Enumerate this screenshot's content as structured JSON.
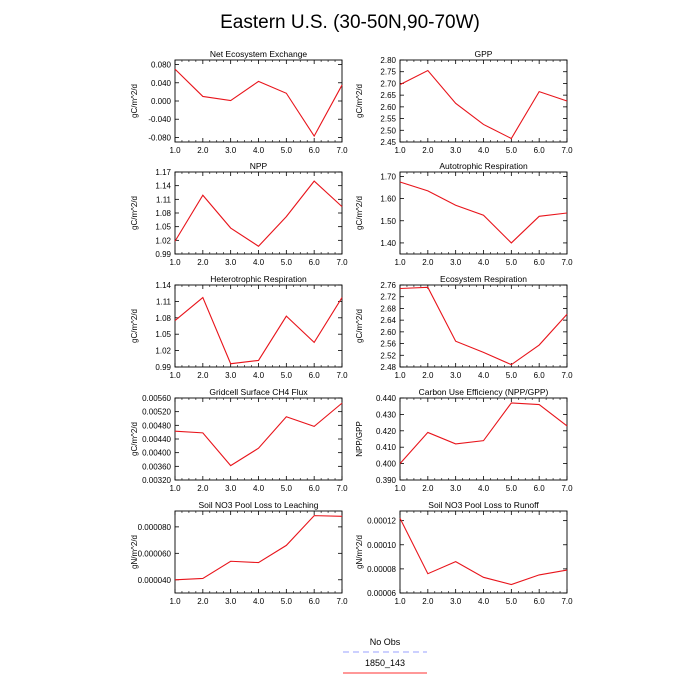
{
  "title": "Eastern U.S. (30-50N,90-70W)",
  "legend": [
    {
      "label": "No Obs",
      "color": "#9aa0ff",
      "dash": true
    },
    {
      "label": "1850_143",
      "color": "#ff3030",
      "dash": false
    }
  ],
  "line_color": "#e8141b",
  "chart_data": [
    {
      "type": "line",
      "title": "Net Ecosystem Exchange",
      "ylabel": "gC/m^2/d",
      "x": [
        1,
        2,
        3,
        4,
        5,
        6,
        7
      ],
      "values": [
        0.07,
        0.01,
        0.001,
        0.043,
        0.017,
        -0.077,
        0.035
      ],
      "xlim": [
        1,
        7
      ],
      "ylim": [
        -0.09,
        0.09
      ],
      "yticks": [
        "-0.080",
        "-0.040",
        "0.000",
        "0.040",
        "0.080"
      ],
      "ytick_values": [
        -0.08,
        -0.04,
        0,
        0.04,
        0.08
      ],
      "xticks": [
        "1.0",
        "2.0",
        "3.0",
        "4.0",
        "5.0",
        "6.0",
        "7.0"
      ]
    },
    {
      "type": "line",
      "title": "GPP",
      "ylabel": "gC/m^2/d",
      "x": [
        1,
        2,
        3,
        4,
        5,
        6,
        7
      ],
      "values": [
        2.695,
        2.755,
        2.615,
        2.525,
        2.465,
        2.665,
        2.625
      ],
      "xlim": [
        1,
        7
      ],
      "ylim": [
        2.45,
        2.8
      ],
      "yticks": [
        "2.45",
        "2.50",
        "2.55",
        "2.60",
        "2.65",
        "2.70",
        "2.75",
        "2.80"
      ],
      "ytick_values": [
        2.45,
        2.5,
        2.55,
        2.6,
        2.65,
        2.7,
        2.75,
        2.8
      ],
      "xticks": [
        "1.0",
        "2.0",
        "3.0",
        "4.0",
        "5.0",
        "6.0",
        "7.0"
      ]
    },
    {
      "type": "line",
      "title": "NPP",
      "ylabel": "gC/m^2/d",
      "x": [
        1,
        2,
        3,
        4,
        5,
        6,
        7
      ],
      "values": [
        1.018,
        1.119,
        1.047,
        1.007,
        1.072,
        1.15,
        1.094
      ],
      "xlim": [
        1,
        7
      ],
      "ylim": [
        0.99,
        1.17
      ],
      "yticks": [
        "0.99",
        "1.02",
        "1.05",
        "1.08",
        "1.11",
        "1.14",
        "1.17"
      ],
      "ytick_values": [
        0.99,
        1.02,
        1.05,
        1.08,
        1.11,
        1.14,
        1.17
      ],
      "xticks": [
        "1.0",
        "2.0",
        "3.0",
        "4.0",
        "5.0",
        "6.0",
        "7.0"
      ]
    },
    {
      "type": "line",
      "title": "Autotrophic Respiration",
      "ylabel": "gC/m^2/d",
      "x": [
        1,
        2,
        3,
        4,
        5,
        6,
        7
      ],
      "values": [
        1.675,
        1.635,
        1.57,
        1.525,
        1.4,
        1.52,
        1.535
      ],
      "xlim": [
        1,
        7
      ],
      "ylim": [
        1.35,
        1.72
      ],
      "yticks": [
        "1.40",
        "1.50",
        "1.60",
        "1.70"
      ],
      "ytick_values": [
        1.4,
        1.5,
        1.6,
        1.7
      ],
      "xticks": [
        "1.0",
        "2.0",
        "3.0",
        "4.0",
        "5.0",
        "6.0",
        "7.0"
      ]
    },
    {
      "type": "line",
      "title": "Heterotrophic Respiration",
      "ylabel": "gC/m^2/d",
      "x": [
        1,
        2,
        3,
        4,
        5,
        6,
        7
      ],
      "values": [
        1.075,
        1.117,
        0.996,
        1.002,
        1.083,
        1.035,
        1.117
      ],
      "xlim": [
        1,
        7
      ],
      "ylim": [
        0.99,
        1.14
      ],
      "yticks": [
        "0.99",
        "1.02",
        "1.05",
        "1.08",
        "1.11",
        "1.14"
      ],
      "ytick_values": [
        0.99,
        1.02,
        1.05,
        1.08,
        1.11,
        1.14
      ],
      "xticks": [
        "1.0",
        "2.0",
        "3.0",
        "4.0",
        "5.0",
        "6.0",
        "7.0"
      ]
    },
    {
      "type": "line",
      "title": "Ecosystem Respiration",
      "ylabel": "gC/m^2/d",
      "x": [
        1,
        2,
        3,
        4,
        5,
        6,
        7
      ],
      "values": [
        2.748,
        2.752,
        2.568,
        2.53,
        2.488,
        2.555,
        2.66
      ],
      "xlim": [
        1,
        7
      ],
      "ylim": [
        2.48,
        2.76
      ],
      "yticks": [
        "2.48",
        "2.52",
        "2.56",
        "2.60",
        "2.64",
        "2.68",
        "2.72",
        "2.76"
      ],
      "ytick_values": [
        2.48,
        2.52,
        2.56,
        2.6,
        2.64,
        2.68,
        2.72,
        2.76
      ],
      "xticks": [
        "1.0",
        "2.0",
        "3.0",
        "4.0",
        "5.0",
        "6.0",
        "7.0"
      ]
    },
    {
      "type": "line",
      "title": "Gridcell Surface CH4 Flux",
      "ylabel": "gC/m^2/d",
      "x": [
        1,
        2,
        3,
        4,
        5,
        6,
        7
      ],
      "values": [
        0.00463,
        0.00458,
        0.00362,
        0.00413,
        0.00505,
        0.00477,
        0.00545
      ],
      "xlim": [
        1,
        7
      ],
      "ylim": [
        0.0032,
        0.0056
      ],
      "yticks": [
        "0.00320",
        "0.00360",
        "0.00400",
        "0.00440",
        "0.00480",
        "0.00520",
        "0.00560"
      ],
      "ytick_values": [
        0.0032,
        0.0036,
        0.004,
        0.0044,
        0.0048,
        0.0052,
        0.0056
      ],
      "xticks": [
        "1.0",
        "2.0",
        "3.0",
        "4.0",
        "5.0",
        "6.0",
        "7.0"
      ]
    },
    {
      "type": "line",
      "title": "Carbon Use Efficiency (NPP/GPP)",
      "ylabel": "NPP/GPP",
      "x": [
        1,
        2,
        3,
        4,
        5,
        6,
        7
      ],
      "values": [
        0.4,
        0.419,
        0.412,
        0.414,
        0.437,
        0.436,
        0.423
      ],
      "xlim": [
        1,
        7
      ],
      "ylim": [
        0.39,
        0.44
      ],
      "yticks": [
        "0.390",
        "0.400",
        "0.410",
        "0.420",
        "0.430",
        "0.440"
      ],
      "ytick_values": [
        0.39,
        0.4,
        0.41,
        0.42,
        0.43,
        0.44
      ],
      "xticks": [
        "1.0",
        "2.0",
        "3.0",
        "4.0",
        "5.0",
        "6.0",
        "7.0"
      ]
    },
    {
      "type": "line",
      "title": "Soil NO3 Pool Loss to Leaching",
      "ylabel": "gN/m^2/d",
      "x": [
        1,
        2,
        3,
        4,
        5,
        6,
        7
      ],
      "values": [
        4e-05,
        4.1e-05,
        5.4e-05,
        5.3e-05,
        6.6e-05,
        8.85e-05,
        8.8e-05
      ],
      "xlim": [
        1,
        7
      ],
      "ylim": [
        3e-05,
        9.2e-05
      ],
      "yticks": [
        "0.000040",
        "0.000060",
        "0.000080"
      ],
      "ytick_values": [
        4e-05,
        6e-05,
        8e-05
      ],
      "xticks": [
        "1.0",
        "2.0",
        "3.0",
        "4.0",
        "5.0",
        "6.0",
        "7.0"
      ]
    },
    {
      "type": "line",
      "title": "Soil NO3 Pool Loss to Runoff",
      "ylabel": "gN/m^2/d",
      "x": [
        1,
        2,
        3,
        4,
        5,
        6,
        7
      ],
      "values": [
        0.000122,
        7.6e-05,
        8.6e-05,
        7.3e-05,
        6.7e-05,
        7.5e-05,
        7.9e-05
      ],
      "xlim": [
        1,
        7
      ],
      "ylim": [
        6e-05,
        0.000128
      ],
      "yticks": [
        "0.00006",
        "0.00008",
        "0.00010",
        "0.00012"
      ],
      "ytick_values": [
        6e-05,
        8e-05,
        0.0001,
        0.00012
      ],
      "xticks": [
        "1.0",
        "2.0",
        "3.0",
        "4.0",
        "5.0",
        "6.0",
        "7.0"
      ]
    }
  ]
}
